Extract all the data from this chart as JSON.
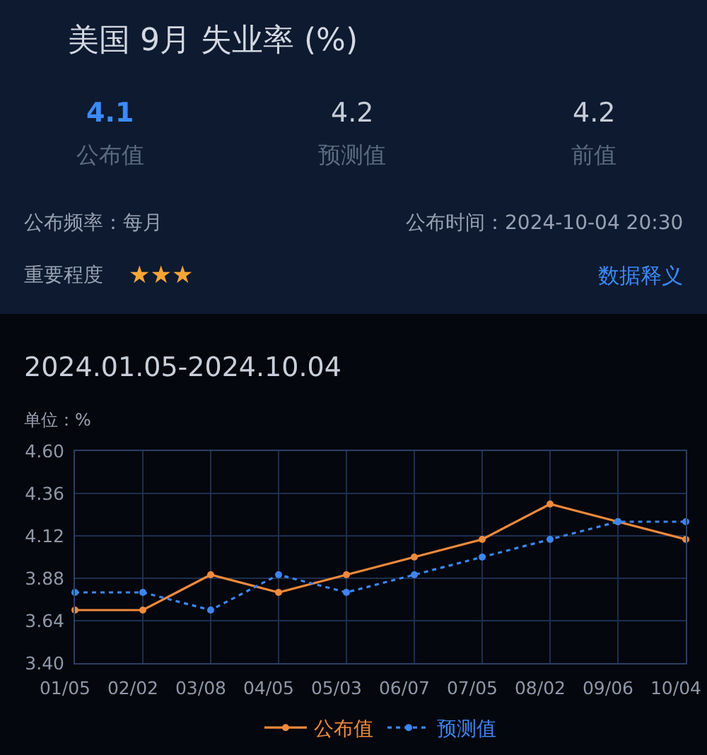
{
  "chart_data": {
    "type": "line",
    "title": "美国 9月 失业率 (%)",
    "subtitle": "2024.01.05-2024.10.04",
    "ylabel": "单位：%",
    "categories": [
      "01/05",
      "02/02",
      "03/08",
      "04/05",
      "05/03",
      "06/07",
      "07/05",
      "08/02",
      "09/06",
      "10/04"
    ],
    "series": [
      {
        "name": "公布值",
        "color": "#f08a3c",
        "line_style": "solid",
        "values": [
          3.7,
          3.7,
          3.9,
          3.8,
          3.9,
          4.0,
          4.1,
          4.3,
          4.2,
          4.1
        ]
      },
      {
        "name": "预测值",
        "color": "#3d86f2",
        "line_style": "dotted",
        "values": [
          3.8,
          3.8,
          3.7,
          3.9,
          3.8,
          3.9,
          4.0,
          4.1,
          4.2,
          4.2
        ]
      }
    ],
    "ylim": [
      3.4,
      4.6
    ],
    "yticks": [
      {
        "value": 3.4,
        "label": "3.40"
      },
      3.64,
      3.88,
      4.12,
      4.36,
      {
        "value": 4.6,
        "label": "4.60"
      }
    ],
    "grid": true,
    "legend": "bottom",
    "marker": "circle",
    "annotations": [
      "4.1",
      "公布值",
      "4.2",
      "预测值",
      "4.2",
      "前值",
      "公布频率：每月",
      "公布时间：2024-10-04 20:30",
      "重要程度",
      "★★★",
      "数据释义"
    ]
  }
}
